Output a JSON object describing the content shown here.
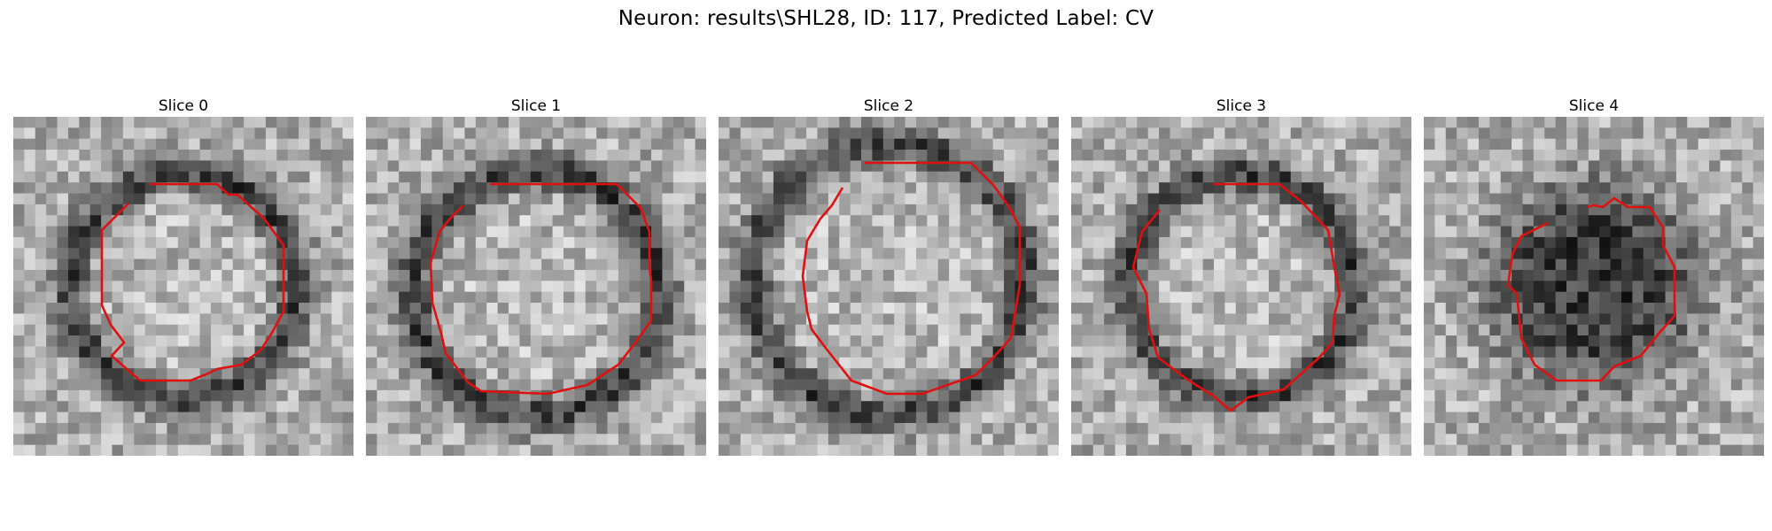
{
  "figure": {
    "title": "Neuron: results\\SHL28, ID: 117, Predicted Label: CV"
  },
  "colors": {
    "contour": "#e01010",
    "background": "#ffffff"
  },
  "panels": [
    {
      "label": "Slice 0"
    },
    {
      "label": "Slice 1"
    },
    {
      "label": "Slice 2"
    },
    {
      "label": "Slice 3"
    },
    {
      "label": "Slice 4"
    }
  ]
}
